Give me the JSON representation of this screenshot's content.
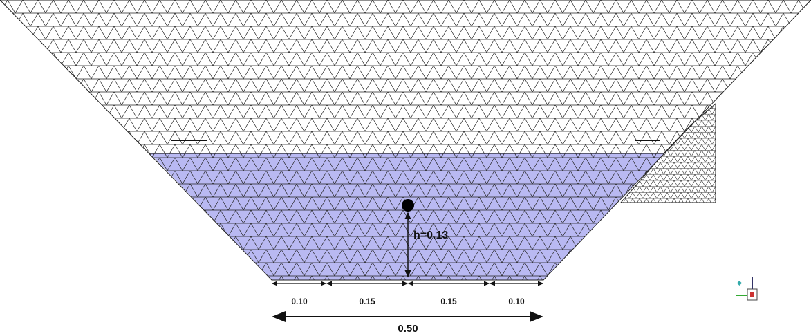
{
  "depth_label": "h=0.13",
  "segments": [
    "0.10",
    "0.15",
    "0.15",
    "0.10"
  ],
  "total_width": "0.50"
}
